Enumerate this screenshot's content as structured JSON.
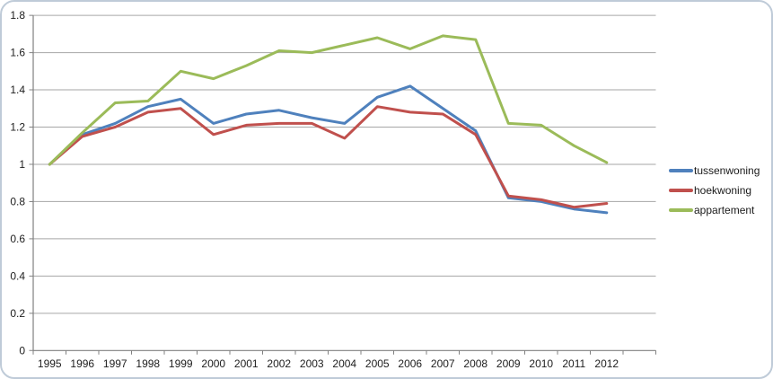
{
  "chart_data": {
    "type": "line",
    "title": "",
    "xlabel": "",
    "ylabel": "",
    "categories": [
      "1995",
      "1996",
      "1997",
      "1998",
      "1999",
      "2000",
      "2001",
      "2002",
      "2003",
      "2004",
      "2005",
      "2006",
      "2007",
      "2008",
      "2009",
      "2010",
      "2011",
      "2012"
    ],
    "series": [
      {
        "name": "tussenwoning",
        "color": "#4F81BD",
        "values": [
          1.0,
          1.16,
          1.22,
          1.31,
          1.35,
          1.22,
          1.27,
          1.29,
          1.25,
          1.22,
          1.36,
          1.42,
          1.3,
          1.18,
          0.82,
          0.8,
          0.76,
          0.74
        ]
      },
      {
        "name": "hoekwoning",
        "color": "#C0504D",
        "values": [
          1.0,
          1.15,
          1.2,
          1.28,
          1.3,
          1.16,
          1.21,
          1.22,
          1.22,
          1.14,
          1.31,
          1.28,
          1.27,
          1.16,
          0.83,
          0.81,
          0.77,
          0.79
        ]
      },
      {
        "name": "appartement",
        "color": "#9BBB59",
        "values": [
          1.0,
          1.17,
          1.33,
          1.34,
          1.5,
          1.46,
          1.53,
          1.61,
          1.6,
          1.64,
          1.68,
          1.62,
          1.69,
          1.67,
          1.22,
          1.21,
          1.1,
          1.01
        ]
      }
    ],
    "ylim": [
      0,
      1.8
    ],
    "ytick_step": 0.2,
    "ytick_labels": [
      "0",
      "0.2",
      "0.4",
      "0.6",
      "0.8",
      "1",
      "1.2",
      "1.4",
      "1.6",
      "1.8"
    ],
    "grid": true,
    "legend_position": "right"
  },
  "style": {
    "gridline_color": "#A6A6A6",
    "axis_color": "#808080",
    "text_color": "#202020",
    "frame_color": "#BFCBD8",
    "background": "#FFFFFF",
    "line_width": 3
  }
}
